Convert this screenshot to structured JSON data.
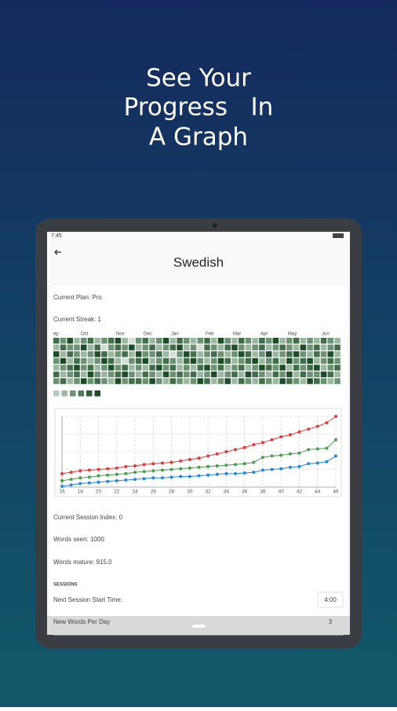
{
  "header": {
    "lines": [
      "See Your",
      "Progress   In",
      "A Graph"
    ]
  },
  "status_bar": {
    "time": "7:45"
  },
  "app": {
    "title": "Swedish",
    "current_plan": "Current Plan: Pro",
    "current_streak": "Current Streak: 1",
    "session_index": "Current Session Index: 0",
    "words_seen": "Words seen: 1000",
    "words_mature": "Words mature: 915.0",
    "sessions_heading": "SESSIONS",
    "next_session_label": "Next Session Start Time:",
    "next_session_value": "4:00",
    "new_words_label": "New Words Per Day",
    "new_words_value": "3"
  },
  "heatmap": {
    "months": [
      "ep",
      "Oct",
      "Nov",
      "Dec",
      "Jan",
      "Feb",
      "Mar",
      "Apr",
      "May",
      "Jun"
    ],
    "colors": [
      "#d3dfd5",
      "#9db8a2",
      "#6b9273",
      "#3f6e49",
      "#1b4d27"
    ],
    "legend_colors": [
      "#b9cbbd",
      "#9db8a2",
      "#6b9273",
      "#4f7d59",
      "#2f5e39",
      "#1b4d27"
    ],
    "levels": [
      [
        3,
        2,
        4,
        1,
        2,
        3,
        1,
        2,
        3,
        4,
        1,
        0,
        2,
        3,
        1,
        2,
        4,
        1,
        3,
        2,
        1,
        2,
        3,
        1,
        4,
        2,
        1,
        3,
        2,
        1,
        3,
        2,
        4,
        1,
        2,
        3,
        1,
        2,
        1,
        3,
        2,
        1
      ],
      [
        1,
        3,
        2,
        2,
        4,
        1,
        3,
        0,
        2,
        3,
        2,
        4,
        1,
        2,
        3,
        1,
        2,
        3,
        4,
        1,
        2,
        0,
        3,
        2,
        1,
        3,
        4,
        2,
        1,
        2,
        3,
        1,
        2,
        3,
        2,
        1,
        4,
        2,
        3,
        1,
        2,
        3
      ],
      [
        4,
        1,
        3,
        2,
        1,
        2,
        4,
        3,
        1,
        2,
        3,
        1,
        4,
        2,
        2,
        3,
        1,
        0,
        2,
        4,
        3,
        1,
        2,
        3,
        2,
        1,
        2,
        4,
        3,
        1,
        2,
        4,
        1,
        2,
        3,
        4,
        2,
        1,
        3,
        2,
        4,
        1
      ],
      [
        2,
        4,
        1,
        3,
        2,
        1,
        2,
        4,
        3,
        1,
        0,
        2,
        3,
        4,
        1,
        2,
        3,
        2,
        1,
        3,
        4,
        2,
        1,
        2,
        4,
        3,
        1,
        2,
        3,
        4,
        1,
        2,
        3,
        1,
        4,
        2,
        3,
        4,
        1,
        2,
        3,
        2
      ],
      [
        1,
        2,
        3,
        4,
        2,
        3,
        1,
        2,
        4,
        2,
        3,
        1,
        2,
        1,
        3,
        4,
        2,
        3,
        1,
        2,
        1,
        3,
        4,
        2,
        3,
        1,
        2,
        3,
        1,
        2,
        4,
        3,
        2,
        4,
        1,
        3,
        2,
        3,
        4,
        1,
        2,
        3
      ],
      [
        3,
        1,
        2,
        3,
        1,
        4,
        2,
        1,
        2,
        3,
        4,
        2,
        1,
        3,
        2,
        1,
        4,
        2,
        3,
        2,
        3,
        1,
        2,
        4,
        1,
        2,
        3,
        1,
        4,
        3,
        2,
        1,
        3,
        2,
        4,
        1,
        3,
        2,
        2,
        4,
        3,
        1
      ],
      [
        2,
        3,
        1,
        2,
        4,
        2,
        3,
        2,
        1,
        4,
        2,
        3,
        3,
        2,
        4,
        2,
        1,
        3,
        2,
        1,
        2,
        4,
        3,
        1,
        2,
        4,
        1,
        3,
        2,
        1,
        3,
        2,
        1,
        4,
        3,
        2,
        1,
        4,
        3,
        2,
        1,
        2
      ]
    ]
  },
  "chart_data": {
    "type": "line",
    "x": [
      16,
      17,
      18,
      19,
      20,
      21,
      22,
      23,
      24,
      25,
      26,
      27,
      28,
      29,
      30,
      31,
      32,
      33,
      34,
      35,
      36,
      37,
      38,
      39,
      40,
      41,
      42,
      43,
      44,
      45,
      46
    ],
    "xlim": [
      16,
      46
    ],
    "xticks": [
      16,
      18,
      20,
      22,
      24,
      26,
      28,
      30,
      32,
      34,
      36,
      38,
      40,
      42,
      44,
      46
    ],
    "ylim": [
      0,
      100
    ],
    "grid": true,
    "series": [
      {
        "color": "#e53935",
        "values": [
          19,
          21,
          23,
          24,
          25,
          26,
          27,
          29,
          30,
          32,
          33,
          34,
          35,
          37,
          39,
          41,
          44,
          47,
          50,
          53,
          56,
          60,
          63,
          67,
          71,
          74,
          78,
          82,
          86,
          91,
          100
        ]
      },
      {
        "color": "#43a047",
        "values": [
          9,
          11,
          13,
          14,
          16,
          17,
          18,
          19,
          21,
          22,
          23,
          24,
          25,
          26,
          27,
          28,
          29,
          30,
          31,
          32,
          33,
          35,
          42,
          44,
          45,
          47,
          48,
          53,
          54,
          55,
          67
        ]
      },
      {
        "color": "#1e88e5",
        "values": [
          1,
          3,
          5,
          6,
          7,
          8,
          9,
          10,
          11,
          12,
          13,
          13,
          14,
          15,
          15,
          16,
          17,
          18,
          19,
          19,
          20,
          21,
          24,
          25,
          26,
          28,
          29,
          33,
          34,
          36,
          44
        ]
      }
    ]
  }
}
